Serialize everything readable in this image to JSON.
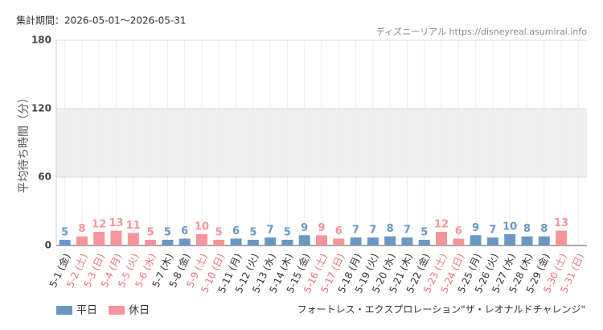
{
  "chart_data": {
    "type": "bar",
    "title": "集計期間：2026-05-01～2026-05-31",
    "source": "ディズニーリアル https://disneyreal.asumirai.info",
    "subtitle": "フォートレス・エクスプロレーション\"ザ・レオナルドチャレンジ\"",
    "y_label": "平均待ち時間（分）",
    "categories": [
      "5-1 (金)",
      "5-2 (土)",
      "5-3 (日)",
      "5-4 (月)",
      "5-5 (火)",
      "5-6 (水)",
      "5-7 (木)",
      "5-8 (金)",
      "5-9 (土)",
      "5-10 (日)",
      "5-11 (月)",
      "5-12 (火)",
      "5-13 (水)",
      "5-14 (木)",
      "5-15 (金)",
      "5-16 (土)",
      "5-17 (日)",
      "5-18 (月)",
      "5-19 (火)",
      "5-20 (水)",
      "5-21 (木)",
      "5-22 (金)",
      "5-23 (土)",
      "5-24 (日)",
      "5-25 (月)",
      "5-26 (火)",
      "5-27 (水)",
      "5-28 (木)",
      "5-29 (金)",
      "5-30 (土)",
      "5-31 (日)"
    ],
    "category_colors": [
      "#333",
      "#e8737a",
      "#e8737a",
      "#e8737a",
      "#e8737a",
      "#e8737a",
      "#333",
      "#333",
      "#e8737a",
      "#e8737a",
      "#333",
      "#333",
      "#333",
      "#333",
      "#333",
      "#e8737a",
      "#e8737a",
      "#333",
      "#333",
      "#333",
      "#333",
      "#333",
      "#e8737a",
      "#e8737a",
      "#333",
      "#333",
      "#333",
      "#333",
      "#333",
      "#e8737a",
      "#e8737a"
    ],
    "series": [
      {
        "name": "平日",
        "color": "#6a98c5",
        "values": [
          5,
          null,
          null,
          null,
          null,
          null,
          5,
          6,
          null,
          null,
          6,
          5,
          7,
          5,
          9,
          null,
          null,
          7,
          7,
          8,
          7,
          5,
          null,
          null,
          9,
          7,
          10,
          8,
          8,
          null,
          null
        ]
      },
      {
        "name": "休日",
        "color": "#f5959b",
        "values": [
          null,
          8,
          12,
          13,
          11,
          5,
          null,
          null,
          10,
          5,
          null,
          null,
          null,
          null,
          null,
          9,
          6,
          null,
          null,
          null,
          null,
          null,
          12,
          6,
          null,
          null,
          null,
          null,
          null,
          13,
          null
        ]
      }
    ],
    "ylim": [
      0,
      180
    ],
    "yticks": [
      0,
      60,
      120,
      180
    ],
    "shaded_band": [
      60,
      120
    ],
    "grid": true
  }
}
